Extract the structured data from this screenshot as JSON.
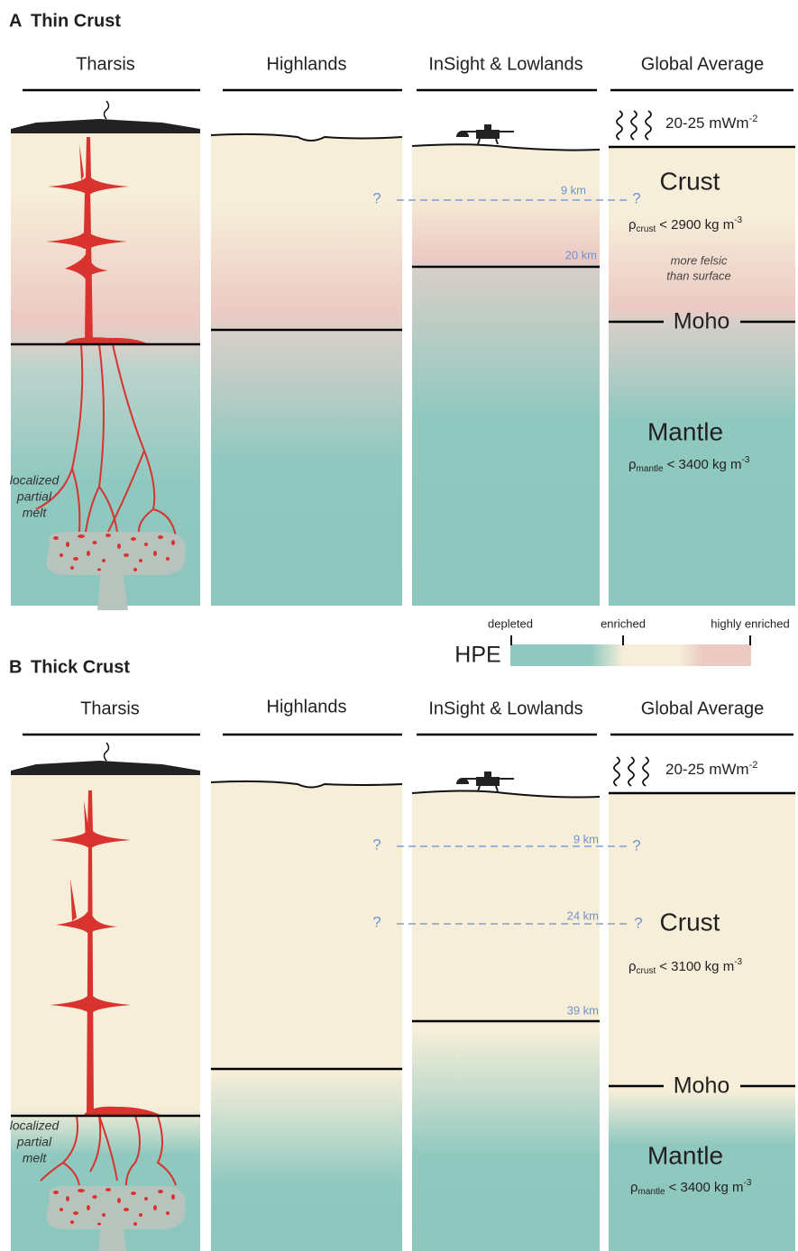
{
  "panels": [
    {
      "label": "A",
      "title": "Thin Crust",
      "columns": [
        "Tharsis",
        "Highlands",
        "InSight & Lowlands",
        "Global Average"
      ],
      "heat_flow": {
        "text": "20-25 mWm",
        "sup": "-2"
      },
      "melt_label": [
        "localized",
        "partial",
        "melt"
      ],
      "markers": [
        "?",
        "?"
      ],
      "depths": [
        "9 km",
        "20 km"
      ],
      "crust": "Crust",
      "crust_density": {
        "symbol": "ρ",
        "sub": "crust",
        "text": "< 2900 kg m",
        "sup": "-3"
      },
      "crust_note": [
        "more felsic",
        "than surface"
      ],
      "moho": "Moho",
      "mantle": "Mantle",
      "mantle_density": {
        "symbol": "ρ",
        "sub": "mantle",
        "text": "< 3400 kg m",
        "sup": "-3"
      }
    },
    {
      "label": "B",
      "title": "Thick Crust",
      "columns": [
        "Tharsis",
        "Highlands",
        "InSight & Lowlands",
        "Global Average"
      ],
      "heat_flow": {
        "text": "20-25 mWm",
        "sup": "-2"
      },
      "melt_label": [
        "localized",
        "partial",
        "melt"
      ],
      "markers": [
        "?",
        "?",
        "?",
        "?"
      ],
      "depths": [
        "9 km",
        "24 km",
        "39 km"
      ],
      "crust": "Crust",
      "crust_density": {
        "symbol": "ρ",
        "sub": "crust",
        "text": "< 3100 kg m",
        "sup": "-3"
      },
      "moho": "Moho",
      "mantle": "Mantle",
      "mantle_density": {
        "symbol": "ρ",
        "sub": "mantle",
        "text": "< 3400 kg m",
        "sup": "-3"
      }
    }
  ],
  "legend": {
    "title": "HPE",
    "labels": [
      "depleted",
      "enriched",
      "highly enriched"
    ]
  }
}
